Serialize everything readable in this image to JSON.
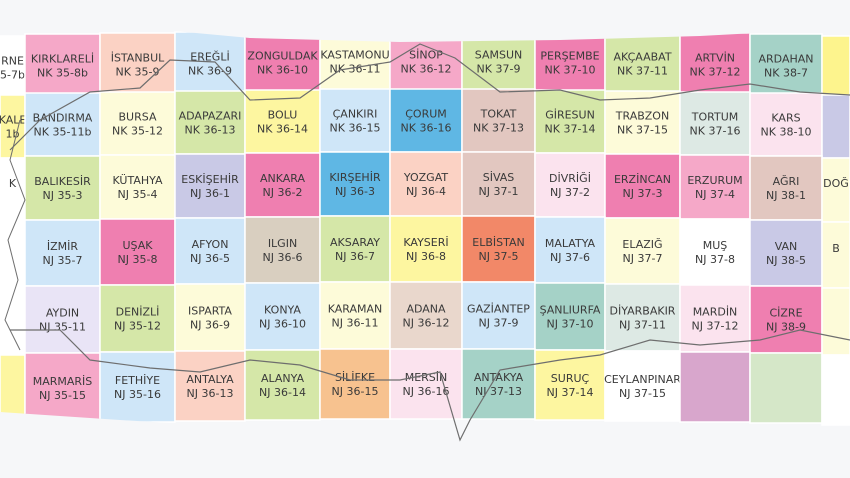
{
  "map": {
    "title": "",
    "rows": [
      [
        {
          "name": "RNE",
          "code": "5-7b",
          "color": "#ffffff"
        },
        {
          "name": "KIRKLARELİ",
          "code": "NK 35-8b",
          "color": "#f5a8c8"
        },
        {
          "name": "İSTANBUL",
          "code": "NK 35-9",
          "color": "#fbd2c4"
        },
        {
          "name": "EREĞLİ",
          "code": "NK 36-9",
          "color": "#cfe6f8"
        },
        {
          "name": "ZONGULDAK",
          "code": "NK 36-10",
          "color": "#ef7fb0"
        },
        {
          "name": "KASTAMONU",
          "code": "NK 36-11",
          "color": "#fdfbd9"
        },
        {
          "name": "SİNOP",
          "code": "NK 36-12",
          "color": "#f5a8c8"
        },
        {
          "name": "SAMSUN",
          "code": "NK 37-9",
          "color": "#d5e7a8"
        },
        {
          "name": "PERŞEMBE",
          "code": "NK 37-10",
          "color": "#ef7fb0"
        },
        {
          "name": "AKÇAABAT",
          "code": "NK 37-11",
          "color": "#d5e7a8"
        },
        {
          "name": "ARTVİN",
          "code": "NK 37-12",
          "color": "#ef7fb0"
        },
        {
          "name": "ARDAHAN",
          "code": "NK 38-7",
          "color": "#a5d2c7"
        },
        {
          "name": "",
          "code": "",
          "color": "#fdf48d"
        }
      ],
      [
        {
          "name": "KALE",
          "code": "1b",
          "color": "#fdf6a0"
        },
        {
          "name": "BANDIRMA",
          "code": "NK 35-11b",
          "color": "#cfe6f8"
        },
        {
          "name": "BURSA",
          "code": "NK 35-12",
          "color": "#fdfbd9"
        },
        {
          "name": "ADAPAZARI",
          "code": "NK 36-13",
          "color": "#d5e7a8"
        },
        {
          "name": "BOLU",
          "code": "NK 36-14",
          "color": "#fdf6a0"
        },
        {
          "name": "ÇANKIRI",
          "code": "NK 36-15",
          "color": "#cfe6f8"
        },
        {
          "name": "ÇORUM",
          "code": "NK 36-16",
          "color": "#5fb7e4"
        },
        {
          "name": "TOKAT",
          "code": "NK 37-13",
          "color": "#e2c7c0"
        },
        {
          "name": "GİRESUN",
          "code": "NK 37-14",
          "color": "#d5e7a8"
        },
        {
          "name": "TRABZON",
          "code": "NK 37-15",
          "color": "#fdfbd9"
        },
        {
          "name": "TORTUM",
          "code": "NK 37-16",
          "color": "#dde9e4"
        },
        {
          "name": "KARS",
          "code": "NK 38-10",
          "color": "#fbe3ee"
        },
        {
          "name": "",
          "code": "",
          "color": "#c9c9e6"
        }
      ],
      [
        {
          "name": "K",
          "code": "",
          "color": "#ffffff"
        },
        {
          "name": "BALIKESİR",
          "code": "NJ 35-3",
          "color": "#d5e7a8"
        },
        {
          "name": "KÜTAHYA",
          "code": "NJ 35-4",
          "color": "#fdfbd9"
        },
        {
          "name": "ESKİŞEHİR",
          "code": "NJ 36-1",
          "color": "#c9c9e6"
        },
        {
          "name": "ANKARA",
          "code": "NJ 36-2",
          "color": "#ef7fb0"
        },
        {
          "name": "KIRŞEHİR",
          "code": "NJ 36-3",
          "color": "#5fb7e4"
        },
        {
          "name": "YOZGAT",
          "code": "NJ 36-4",
          "color": "#fbd2c4"
        },
        {
          "name": "SİVAS",
          "code": "NJ 37-1",
          "color": "#e2c7c0"
        },
        {
          "name": "DİVRİĞİ",
          "code": "NJ 37-2",
          "color": "#fbe3ee"
        },
        {
          "name": "ERZİNCAN",
          "code": "NJ 37-3",
          "color": "#ef7fb0"
        },
        {
          "name": "ERZURUM",
          "code": "NJ 37-4",
          "color": "#f5a8c8"
        },
        {
          "name": "AĞRI",
          "code": "NJ 38-1",
          "color": "#e2c7c0"
        },
        {
          "name": "DOĞ",
          "code": "",
          "color": "#fdfbd9"
        }
      ],
      [
        {
          "name": "",
          "code": "",
          "color": "#ffffff"
        },
        {
          "name": "İZMİR",
          "code": "NJ 35-7",
          "color": "#cfe6f8"
        },
        {
          "name": "UŞAK",
          "code": "NJ 35-8",
          "color": "#ef7fb0"
        },
        {
          "name": "AFYON",
          "code": "NJ 36-5",
          "color": "#cfe6f8"
        },
        {
          "name": "ILGIN",
          "code": "NJ 36-6",
          "color": "#d9cfc0"
        },
        {
          "name": "AKSARAY",
          "code": "NJ 36-7",
          "color": "#d5e7a8"
        },
        {
          "name": "KAYSERİ",
          "code": "NJ 36-8",
          "color": "#fdf6a0"
        },
        {
          "name": "ELBİSTAN",
          "code": "NJ 37-5",
          "color": "#f28868"
        },
        {
          "name": "MALATYA",
          "code": "NJ 37-6",
          "color": "#cfe6f8"
        },
        {
          "name": "ELAZIĞ",
          "code": "NJ 37-7",
          "color": "#fdfbd9"
        },
        {
          "name": "MUŞ",
          "code": "NJ 37-8",
          "color": "#ffffff"
        },
        {
          "name": "VAN",
          "code": "NJ 38-5",
          "color": "#c9c9e6"
        },
        {
          "name": "B",
          "code": "",
          "color": "#fdfbd9"
        }
      ],
      [
        {
          "name": "",
          "code": "",
          "color": "#ffffff"
        },
        {
          "name": "AYDIN",
          "code": "NJ 35-11",
          "color": "#e9e4f6"
        },
        {
          "name": "DENİZLİ",
          "code": "NJ 35-12",
          "color": "#d5e7a8"
        },
        {
          "name": "ISPARTA",
          "code": "NJ 36-9",
          "color": "#fdfbd9"
        },
        {
          "name": "KONYA",
          "code": "NJ 36-10",
          "color": "#cfe6f8"
        },
        {
          "name": "KARAMAN",
          "code": "NJ 36-11",
          "color": "#fdfbd9"
        },
        {
          "name": "ADANA",
          "code": "NJ 36-12",
          "color": "#e9d7cc"
        },
        {
          "name": "GAZİANTEP",
          "code": "NJ 37-9",
          "color": "#cfe6f8"
        },
        {
          "name": "ŞANLIURFA",
          "code": "NJ 37-10",
          "color": "#a5d2c7"
        },
        {
          "name": "DİYARBAKIR",
          "code": "NJ 37-11",
          "color": "#dde9e4"
        },
        {
          "name": "MARDİN",
          "code": "NJ 37-12",
          "color": "#fbe3ee"
        },
        {
          "name": "CİZRE",
          "code": "NJ 38-9",
          "color": "#ef7fb0"
        },
        {
          "name": "",
          "code": "",
          "color": "#fdfbd9"
        }
      ],
      [
        {
          "name": "",
          "code": "",
          "color": "#fdf6a0"
        },
        {
          "name": "MARMARİS",
          "code": "NJ 35-15",
          "color": "#f5a8c8"
        },
        {
          "name": "FETHİYE",
          "code": "NJ 35-16",
          "color": "#cfe6f8"
        },
        {
          "name": "ANTALYA",
          "code": "NJ 36-13",
          "color": "#fbd2c4"
        },
        {
          "name": "ALANYA",
          "code": "NJ 36-14",
          "color": "#d5e7a8"
        },
        {
          "name": "SİLİFKE",
          "code": "NJ 36-15",
          "color": "#f7c28f"
        },
        {
          "name": "MERSİN",
          "code": "NJ 36-16",
          "color": "#fbe3ee"
        },
        {
          "name": "ANTAKYA",
          "code": "NJ 37-13",
          "color": "#a5d2c7"
        },
        {
          "name": "SURUÇ",
          "code": "NJ 37-14",
          "color": "#fdf6a0"
        },
        {
          "name": "CEYLANPINAR",
          "code": "NJ 37-15",
          "color": "#ffffff"
        },
        {
          "name": "",
          "code": "",
          "color": "#d8a6cc"
        },
        {
          "name": "",
          "code": "",
          "color": "#d5e7c8"
        },
        {
          "name": "",
          "code": "",
          "color": "#ffffff"
        }
      ]
    ]
  }
}
